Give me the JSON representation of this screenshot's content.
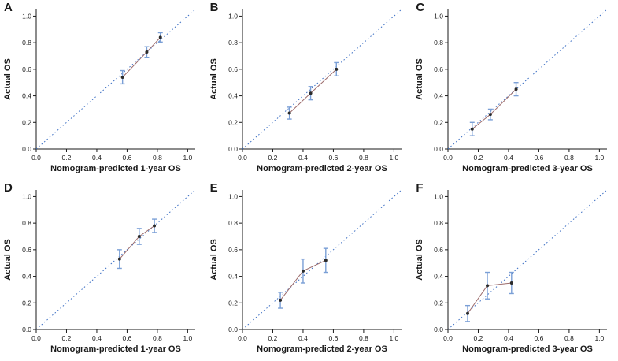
{
  "style": {
    "background_color": "#ffffff",
    "axis_color": "#1a1a1a",
    "diagonal_color": "#3c6fc4",
    "errorbar_color": "#7a9fd6",
    "line_color": "#9c6b6b",
    "point_color": "#2b2b2b"
  },
  "chart_data": [
    {
      "type": "scatter",
      "panel": "A",
      "title": "",
      "xlabel": "Nomogram-predicted 1-year OS",
      "ylabel": "Actual OS",
      "xlim": [
        0.0,
        1.05
      ],
      "ylim": [
        0.0,
        1.05
      ],
      "ticks": [
        0.0,
        0.2,
        0.4,
        0.6,
        0.8,
        1.0
      ],
      "diagonal": true,
      "points": [
        {
          "x": 0.57,
          "y": 0.54,
          "err": 0.05
        },
        {
          "x": 0.73,
          "y": 0.73,
          "err": 0.04
        },
        {
          "x": 0.82,
          "y": 0.84,
          "err": 0.035
        }
      ]
    },
    {
      "type": "scatter",
      "panel": "B",
      "title": "",
      "xlabel": "Nomogram-predicted 2-year OS",
      "ylabel": "Actual OS",
      "xlim": [
        0.0,
        1.05
      ],
      "ylim": [
        0.0,
        1.05
      ],
      "ticks": [
        0.0,
        0.2,
        0.4,
        0.6,
        0.8,
        1.0
      ],
      "diagonal": true,
      "points": [
        {
          "x": 0.31,
          "y": 0.27,
          "err": 0.045
        },
        {
          "x": 0.45,
          "y": 0.42,
          "err": 0.05
        },
        {
          "x": 0.62,
          "y": 0.6,
          "err": 0.05
        }
      ]
    },
    {
      "type": "scatter",
      "panel": "C",
      "title": "",
      "xlabel": "Nomogram-predicted 3-year OS",
      "ylabel": "Actual OS",
      "xlim": [
        0.0,
        1.05
      ],
      "ylim": [
        0.0,
        1.05
      ],
      "ticks": [
        0.0,
        0.2,
        0.4,
        0.6,
        0.8,
        1.0
      ],
      "diagonal": true,
      "points": [
        {
          "x": 0.16,
          "y": 0.15,
          "err": 0.05
        },
        {
          "x": 0.28,
          "y": 0.26,
          "err": 0.04
        },
        {
          "x": 0.45,
          "y": 0.45,
          "err": 0.05
        }
      ]
    },
    {
      "type": "scatter",
      "panel": "D",
      "title": "",
      "xlabel": "Nomogram-predicted 1-year OS",
      "ylabel": "Actual OS",
      "xlim": [
        0.0,
        1.05
      ],
      "ylim": [
        0.0,
        1.05
      ],
      "ticks": [
        0.0,
        0.2,
        0.4,
        0.6,
        0.8,
        1.0
      ],
      "diagonal": true,
      "points": [
        {
          "x": 0.55,
          "y": 0.53,
          "err": 0.07
        },
        {
          "x": 0.68,
          "y": 0.7,
          "err": 0.06
        },
        {
          "x": 0.78,
          "y": 0.78,
          "err": 0.05
        }
      ]
    },
    {
      "type": "scatter",
      "panel": "E",
      "title": "",
      "xlabel": "Nomogram-predicted 2-year OS",
      "ylabel": "Actual OS",
      "xlim": [
        0.0,
        1.05
      ],
      "ylim": [
        0.0,
        1.05
      ],
      "ticks": [
        0.0,
        0.2,
        0.4,
        0.6,
        0.8,
        1.0
      ],
      "diagonal": true,
      "points": [
        {
          "x": 0.25,
          "y": 0.22,
          "err": 0.06
        },
        {
          "x": 0.4,
          "y": 0.44,
          "err": 0.09
        },
        {
          "x": 0.55,
          "y": 0.52,
          "err": 0.09
        }
      ]
    },
    {
      "type": "scatter",
      "panel": "F",
      "title": "",
      "xlabel": "Nomogram-predicted 3-year OS",
      "ylabel": "Actual OS",
      "xlim": [
        0.0,
        1.05
      ],
      "ylim": [
        0.0,
        1.05
      ],
      "ticks": [
        0.0,
        0.2,
        0.4,
        0.6,
        0.8,
        1.0
      ],
      "diagonal": true,
      "points": [
        {
          "x": 0.13,
          "y": 0.12,
          "err": 0.06
        },
        {
          "x": 0.26,
          "y": 0.33,
          "err": 0.1
        },
        {
          "x": 0.42,
          "y": 0.35,
          "err": 0.08
        }
      ]
    }
  ]
}
